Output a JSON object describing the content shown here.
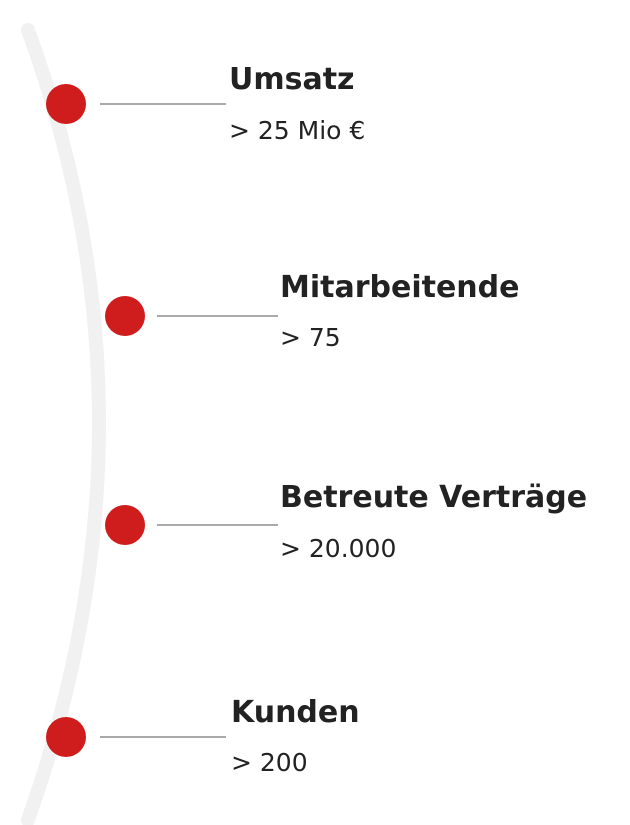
{
  "items": [
    {
      "label": "Umsatz",
      "value": "> 25 Mio €"
    },
    {
      "label": "Mitarbeitende",
      "value": "> 75"
    },
    {
      "label": "Betreute Verträge",
      "value": "> 20.000"
    },
    {
      "label": "Kunden",
      "value": "> 200"
    }
  ]
}
